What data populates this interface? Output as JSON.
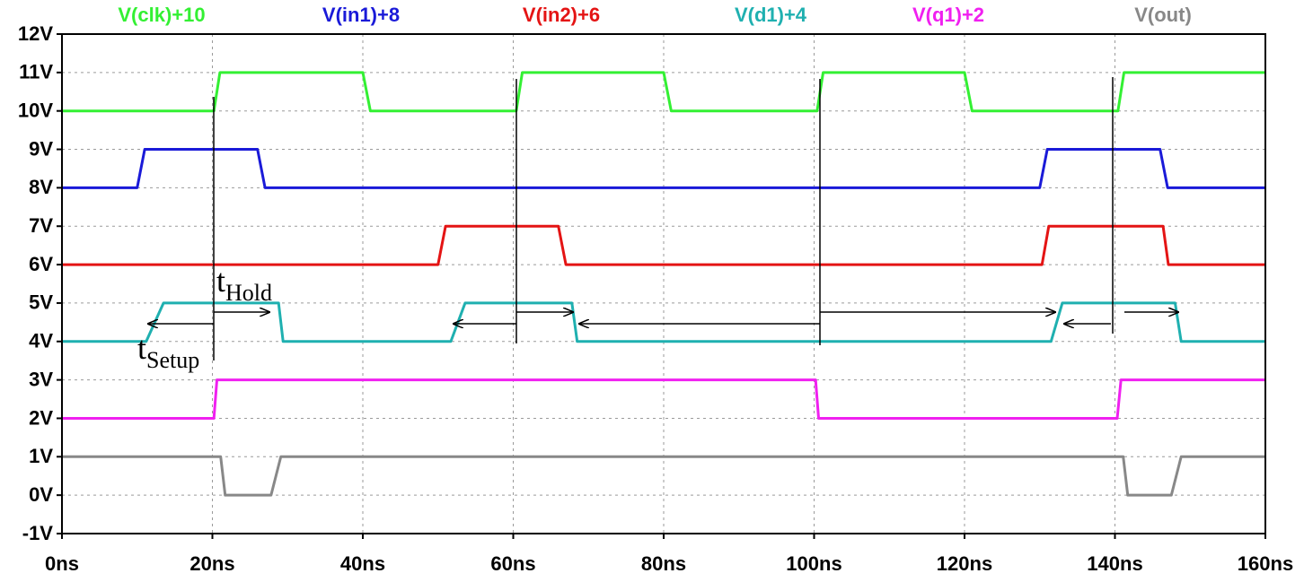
{
  "chart_data": {
    "type": "line",
    "series": [
      {
        "name": "V(clk)+10",
        "color": "#33f033",
        "x": [
          0,
          20.2,
          21,
          40,
          41,
          60.4,
          61.2,
          80,
          81,
          100.4,
          101.2,
          120,
          121,
          140.4,
          141.2,
          160
        ],
        "values": [
          10,
          10,
          11,
          11,
          10,
          10,
          11,
          11,
          10,
          10,
          11,
          11,
          10,
          10,
          11,
          11
        ]
      },
      {
        "name": "V(in1)+8",
        "color": "#1a1ad8",
        "x": [
          0,
          10,
          11,
          26,
          27,
          130,
          131,
          146,
          147,
          160
        ],
        "values": [
          8,
          8,
          9,
          9,
          8,
          8,
          9,
          9,
          8,
          8
        ]
      },
      {
        "name": "V(in2)+6",
        "color": "#e41414",
        "x": [
          0,
          50,
          51,
          66,
          67,
          130.3,
          131.2,
          146.4,
          147.1,
          160
        ],
        "values": [
          6,
          6,
          7,
          7,
          6,
          6,
          7,
          7,
          6,
          6
        ]
      },
      {
        "name": "V(d1)+4",
        "color": "#1fb0b0",
        "x": [
          0,
          11.2,
          13.5,
          28.8,
          29.4,
          51.7,
          53.6,
          67.8,
          68.5,
          131.5,
          133,
          148,
          148.8,
          160
        ],
        "values": [
          4,
          4,
          5,
          5,
          4,
          4,
          5,
          5,
          4,
          4,
          5,
          5,
          4,
          4
        ]
      },
      {
        "name": "V(q1)+2",
        "color": "#f020f0",
        "x": [
          0,
          20.2,
          20.6,
          100.2,
          100.6,
          140.3,
          140.8,
          160
        ],
        "values": [
          2,
          2,
          3,
          3,
          2,
          2,
          3,
          3
        ]
      },
      {
        "name": "V(out)",
        "color": "#888888",
        "x": [
          0,
          21.1,
          21.7,
          27.8,
          29.1,
          141.1,
          141.7,
          147.5,
          148.8,
          160
        ],
        "values": [
          1,
          1,
          0,
          0,
          1,
          1,
          0,
          0,
          1,
          1
        ]
      }
    ],
    "xlim": [
      0,
      160
    ],
    "xticks": [
      {
        "value": 0,
        "label": "0ns"
      },
      {
        "value": 20,
        "label": "20ns"
      },
      {
        "value": 40,
        "label": "40ns"
      },
      {
        "value": 60,
        "label": "60ns"
      },
      {
        "value": 80,
        "label": "80ns"
      },
      {
        "value": 100,
        "label": "100ns"
      },
      {
        "value": 120,
        "label": "120ns"
      },
      {
        "value": 140,
        "label": "140ns"
      },
      {
        "value": 160,
        "label": "160ns"
      }
    ],
    "ylim": [
      -1,
      12
    ],
    "yticks": [
      {
        "value": -1,
        "label": "-1V"
      },
      {
        "value": 0,
        "label": "0V"
      },
      {
        "value": 1,
        "label": "1V"
      },
      {
        "value": 2,
        "label": "2V"
      },
      {
        "value": 3,
        "label": "3V"
      },
      {
        "value": 4,
        "label": "4V"
      },
      {
        "value": 5,
        "label": "5V"
      },
      {
        "value": 6,
        "label": "6V"
      },
      {
        "value": 7,
        "label": "7V"
      },
      {
        "value": 8,
        "label": "8V"
      },
      {
        "value": 9,
        "label": "9V"
      },
      {
        "value": 10,
        "label": "10V"
      },
      {
        "value": 11,
        "label": "11V"
      },
      {
        "value": 12,
        "label": "12V"
      }
    ],
    "grid": true,
    "annotations": [
      {
        "text": "t",
        "sub": "Hold"
      },
      {
        "text": "t",
        "sub": "Setup"
      }
    ]
  }
}
